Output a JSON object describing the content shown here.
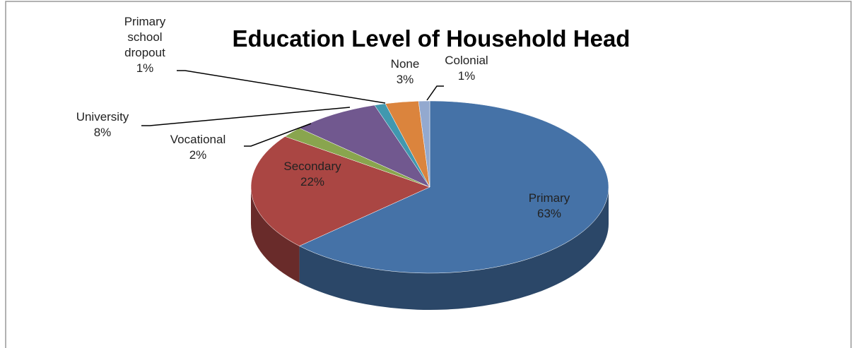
{
  "chart_data": {
    "type": "pie",
    "title": "Education Level of Household Head",
    "categories": [
      "Primary",
      "Secondary",
      "Vocational",
      "University",
      "Primary school dropout",
      "None",
      "Colonial"
    ],
    "values": [
      63,
      22,
      2,
      8,
      1,
      3,
      1
    ],
    "value_labels": [
      "63%",
      "22%",
      "2%",
      "8%",
      "1%",
      "3%",
      "1%"
    ],
    "colors": [
      "#4572a7",
      "#aa4643",
      "#89a54e",
      "#71588f",
      "#4198af",
      "#db843d",
      "#93a9cf"
    ]
  }
}
